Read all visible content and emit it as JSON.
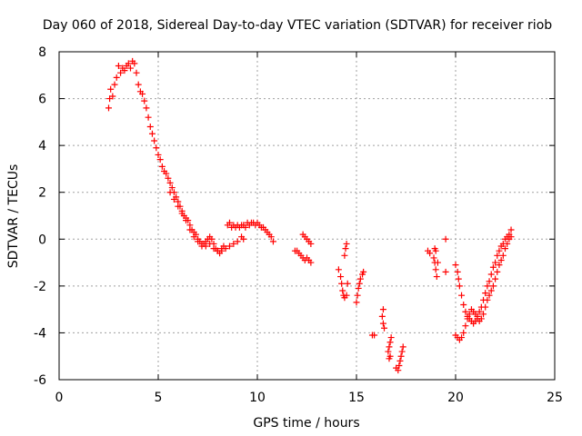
{
  "chart_data": {
    "type": "scatter",
    "title": "Day 060 of 2018, Sidereal Day-to-day VTEC variation (SDTVAR) for receiver riob",
    "xlabel": "GPS time / hours",
    "ylabel": "SDTVAR / TECUs",
    "xlim": [
      0,
      25
    ],
    "ylim": [
      -6,
      8
    ],
    "xticks": [
      0,
      5,
      10,
      15,
      20,
      25
    ],
    "yticks": [
      -6,
      -4,
      -2,
      0,
      2,
      4,
      6,
      8
    ],
    "grid": true,
    "marker": "+",
    "color": "#ff0000",
    "series": [
      {
        "name": "SDTVAR",
        "segments": [
          [
            [
              2.5,
              5.6
            ],
            [
              2.55,
              6.0
            ],
            [
              2.6,
              6.4
            ],
            [
              2.7,
              6.1
            ],
            [
              2.8,
              6.6
            ],
            [
              2.9,
              6.9
            ],
            [
              3.0,
              7.4
            ],
            [
              3.1,
              7.1
            ],
            [
              3.2,
              7.3
            ],
            [
              3.3,
              7.2
            ],
            [
              3.4,
              7.4
            ],
            [
              3.5,
              7.5
            ],
            [
              3.6,
              7.3
            ],
            [
              3.7,
              7.6
            ],
            [
              3.8,
              7.5
            ],
            [
              3.9,
              7.1
            ],
            [
              4.0,
              6.6
            ],
            [
              4.1,
              6.3
            ],
            [
              4.2,
              6.2
            ],
            [
              4.3,
              5.9
            ],
            [
              4.4,
              5.6
            ],
            [
              4.5,
              5.2
            ],
            [
              4.6,
              4.8
            ],
            [
              4.7,
              4.5
            ],
            [
              4.8,
              4.2
            ],
            [
              4.9,
              3.9
            ],
            [
              5.0,
              3.6
            ],
            [
              5.1,
              3.4
            ],
            [
              5.2,
              3.1
            ],
            [
              5.3,
              2.9
            ],
            [
              5.4,
              2.8
            ],
            [
              5.5,
              2.6
            ],
            [
              5.6,
              2.4
            ],
            [
              5.7,
              2.2
            ],
            [
              5.8,
              2.0
            ],
            [
              5.9,
              1.8
            ],
            [
              6.0,
              1.6
            ],
            [
              6.1,
              1.4
            ],
            [
              6.2,
              1.2
            ],
            [
              6.3,
              1.0
            ],
            [
              6.4,
              0.9
            ],
            [
              6.5,
              0.8
            ],
            [
              6.6,
              0.6
            ],
            [
              6.7,
              0.4
            ],
            [
              6.8,
              0.3
            ],
            [
              6.9,
              0.2
            ],
            [
              7.0,
              0.0
            ],
            [
              7.1,
              -0.1
            ],
            [
              7.2,
              -0.2
            ],
            [
              7.3,
              -0.2
            ],
            [
              7.4,
              -0.1
            ],
            [
              7.5,
              0.0
            ],
            [
              7.6,
              0.1
            ],
            [
              7.7,
              0.0
            ],
            [
              7.8,
              -0.2
            ],
            [
              7.9,
              -0.4
            ],
            [
              8.0,
              -0.5
            ],
            [
              8.1,
              -0.6
            ],
            [
              8.2,
              -0.5
            ],
            [
              8.3,
              -0.3
            ]
          ],
          [
            [
              5.6,
              2.0
            ],
            [
              5.8,
              1.7
            ],
            [
              6.0,
              1.4
            ],
            [
              6.2,
              1.1
            ],
            [
              6.4,
              0.8
            ],
            [
              6.6,
              0.4
            ],
            [
              6.8,
              0.1
            ],
            [
              7.0,
              -0.1
            ],
            [
              7.2,
              -0.3
            ],
            [
              7.4,
              -0.3
            ],
            [
              7.6,
              -0.2
            ],
            [
              7.8,
              -0.4
            ],
            [
              8.0,
              -0.5
            ],
            [
              8.2,
              -0.4
            ],
            [
              8.4,
              -0.4
            ],
            [
              8.6,
              -0.3
            ],
            [
              8.8,
              -0.2
            ],
            [
              9.0,
              -0.1
            ],
            [
              9.2,
              0.1
            ],
            [
              9.3,
              0.0
            ]
          ],
          [
            [
              8.5,
              0.6
            ],
            [
              8.6,
              0.7
            ],
            [
              8.7,
              0.5
            ],
            [
              8.8,
              0.6
            ],
            [
              8.9,
              0.5
            ],
            [
              9.0,
              0.6
            ],
            [
              9.1,
              0.5
            ],
            [
              9.2,
              0.6
            ],
            [
              9.3,
              0.6
            ],
            [
              9.4,
              0.5
            ],
            [
              9.5,
              0.7
            ],
            [
              9.6,
              0.6
            ],
            [
              9.7,
              0.7
            ],
            [
              9.8,
              0.7
            ],
            [
              9.9,
              0.6
            ],
            [
              10.0,
              0.7
            ],
            [
              10.1,
              0.6
            ],
            [
              10.2,
              0.5
            ],
            [
              10.3,
              0.5
            ],
            [
              10.4,
              0.4
            ],
            [
              10.5,
              0.3
            ],
            [
              10.6,
              0.2
            ],
            [
              10.7,
              0.1
            ],
            [
              10.8,
              -0.1
            ]
          ],
          [
            [
              11.9,
              -0.5
            ],
            [
              12.0,
              -0.5
            ],
            [
              12.1,
              -0.6
            ],
            [
              12.2,
              -0.7
            ],
            [
              12.3,
              -0.8
            ],
            [
              12.4,
              -0.9
            ],
            [
              12.5,
              -0.8
            ],
            [
              12.6,
              -0.9
            ],
            [
              12.7,
              -1.0
            ],
            [
              12.3,
              0.2
            ],
            [
              12.4,
              0.1
            ],
            [
              12.5,
              0.0
            ],
            [
              12.6,
              -0.1
            ],
            [
              12.7,
              -0.2
            ]
          ],
          [
            [
              14.1,
              -1.3
            ],
            [
              14.2,
              -1.6
            ],
            [
              14.25,
              -1.9
            ],
            [
              14.3,
              -2.2
            ],
            [
              14.35,
              -2.4
            ],
            [
              14.4,
              -2.5
            ],
            [
              14.5,
              -2.4
            ],
            [
              14.55,
              -1.9
            ],
            [
              14.4,
              -0.7
            ],
            [
              14.45,
              -0.4
            ],
            [
              14.5,
              -0.2
            ]
          ],
          [
            [
              15.0,
              -2.7
            ],
            [
              15.05,
              -2.4
            ],
            [
              15.1,
              -2.1
            ],
            [
              15.15,
              -1.9
            ],
            [
              15.2,
              -1.7
            ],
            [
              15.3,
              -1.5
            ],
            [
              15.35,
              -1.4
            ]
          ],
          [
            [
              15.8,
              -4.1
            ],
            [
              15.9,
              -4.1
            ]
          ],
          [
            [
              16.3,
              -3.3
            ],
            [
              16.35,
              -3.6
            ],
            [
              16.4,
              -3.8
            ],
            [
              16.35,
              -3.0
            ]
          ],
          [
            [
              16.6,
              -4.8
            ],
            [
              16.65,
              -4.6
            ],
            [
              16.7,
              -4.4
            ],
            [
              16.75,
              -4.2
            ],
            [
              16.7,
              -5.0
            ],
            [
              16.65,
              -5.1
            ]
          ],
          [
            [
              17.0,
              -5.5
            ],
            [
              17.1,
              -5.6
            ],
            [
              17.15,
              -5.4
            ],
            [
              17.2,
              -5.2
            ],
            [
              17.25,
              -5.0
            ],
            [
              17.3,
              -4.8
            ],
            [
              17.35,
              -4.6
            ]
          ],
          [
            [
              18.6,
              -0.5
            ],
            [
              18.7,
              -0.6
            ]
          ],
          [
            [
              18.9,
              -0.8
            ],
            [
              18.95,
              -1.0
            ],
            [
              19.0,
              -1.3
            ],
            [
              19.05,
              -1.6
            ],
            [
              19.1,
              -1.0
            ],
            [
              18.95,
              -0.4
            ],
            [
              19.0,
              -0.5
            ]
          ],
          [
            [
              19.5,
              0.0
            ],
            [
              19.5,
              -1.4
            ]
          ],
          [
            [
              20.0,
              -1.1
            ],
            [
              20.1,
              -1.4
            ],
            [
              20.15,
              -1.7
            ],
            [
              20.2,
              -2.0
            ],
            [
              20.3,
              -2.4
            ],
            [
              20.4,
              -2.8
            ],
            [
              20.5,
              -3.1
            ],
            [
              20.6,
              -3.3
            ],
            [
              20.7,
              -3.4
            ],
            [
              20.8,
              -3.5
            ],
            [
              20.9,
              -3.6
            ],
            [
              21.0,
              -3.5
            ],
            [
              21.1,
              -3.3
            ],
            [
              21.2,
              -3.1
            ],
            [
              21.3,
              -2.9
            ],
            [
              21.4,
              -2.6
            ],
            [
              21.5,
              -2.3
            ],
            [
              21.6,
              -2.0
            ],
            [
              21.7,
              -1.8
            ],
            [
              21.8,
              -1.5
            ],
            [
              21.9,
              -1.2
            ],
            [
              22.0,
              -1.0
            ],
            [
              22.1,
              -0.7
            ],
            [
              22.2,
              -0.5
            ],
            [
              22.3,
              -0.3
            ],
            [
              22.4,
              -0.2
            ],
            [
              22.5,
              0.0
            ],
            [
              22.6,
              0.1
            ],
            [
              22.7,
              0.2
            ],
            [
              22.8,
              0.4
            ]
          ],
          [
            [
              20.0,
              -4.1
            ],
            [
              20.1,
              -4.2
            ],
            [
              20.2,
              -4.3
            ],
            [
              20.3,
              -4.2
            ],
            [
              20.4,
              -4.0
            ],
            [
              20.5,
              -3.7
            ],
            [
              20.6,
              -3.4
            ],
            [
              20.7,
              -3.2
            ],
            [
              20.8,
              -3.0
            ],
            [
              20.9,
              -3.1
            ],
            [
              21.0,
              -3.2
            ],
            [
              21.1,
              -3.4
            ],
            [
              21.2,
              -3.5
            ],
            [
              21.3,
              -3.4
            ],
            [
              21.4,
              -3.2
            ],
            [
              21.5,
              -2.9
            ],
            [
              21.6,
              -2.6
            ],
            [
              21.7,
              -2.4
            ],
            [
              21.8,
              -2.2
            ],
            [
              21.9,
              -2.0
            ],
            [
              22.0,
              -1.7
            ],
            [
              22.1,
              -1.4
            ],
            [
              22.2,
              -1.1
            ],
            [
              22.3,
              -0.9
            ],
            [
              22.4,
              -0.7
            ],
            [
              22.5,
              -0.4
            ],
            [
              22.6,
              -0.2
            ],
            [
              22.7,
              0.0
            ],
            [
              22.8,
              0.1
            ]
          ]
        ]
      }
    ]
  }
}
